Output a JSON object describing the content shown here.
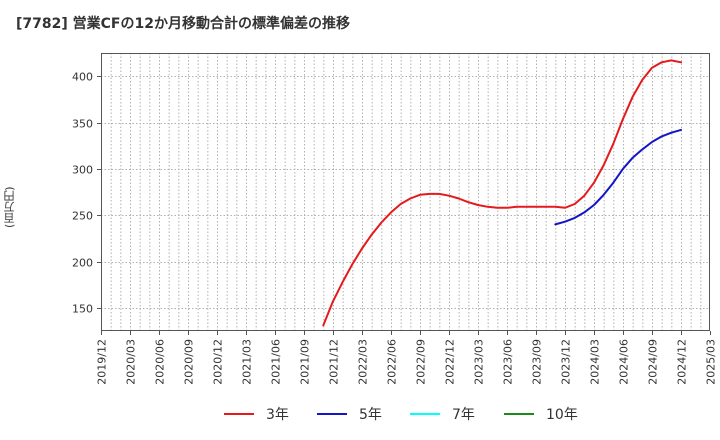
{
  "chart_data": {
    "type": "line",
    "title": "[7782]  営業CFの12か月移動合計の標準偏差の推移",
    "ylabel": "(百万円)",
    "xlabel": "",
    "ylim": [
      125,
      425
    ],
    "yticks": [
      150,
      200,
      250,
      300,
      350,
      400
    ],
    "x_range": [
      "2019/12",
      "2025/03"
    ],
    "x_tick_labels": [
      "2019/12",
      "2020/03",
      "2020/06",
      "2020/09",
      "2020/12",
      "2021/03",
      "2021/06",
      "2021/09",
      "2021/12",
      "2022/03",
      "2022/06",
      "2022/09",
      "2022/12",
      "2023/03",
      "2023/06",
      "2023/09",
      "2023/12",
      "2024/03",
      "2024/06",
      "2024/09",
      "2024/12",
      "2025/03"
    ],
    "grid": true,
    "legend_position": "bottom",
    "series": [
      {
        "name": "3年",
        "color": "#e41a1c",
        "x": [
          "2021/11",
          "2021/12",
          "2022/01",
          "2022/02",
          "2022/03",
          "2022/04",
          "2022/05",
          "2022/06",
          "2022/07",
          "2022/08",
          "2022/09",
          "2022/10",
          "2022/11",
          "2022/12",
          "2023/01",
          "2023/02",
          "2023/03",
          "2023/04",
          "2023/05",
          "2023/06",
          "2023/07",
          "2023/08",
          "2023/09",
          "2023/10",
          "2023/11",
          "2023/12",
          "2024/01",
          "2024/02",
          "2024/03",
          "2024/04",
          "2024/05",
          "2024/06",
          "2024/07",
          "2024/08",
          "2024/09",
          "2024/10",
          "2024/11",
          "2024/12"
        ],
        "values": [
          131,
          157,
          178,
          197,
          214,
          229,
          242,
          253,
          262,
          268,
          272,
          273,
          273,
          271,
          268,
          264,
          261,
          259,
          258,
          258,
          259,
          259,
          259,
          259,
          259,
          258,
          262,
          271,
          285,
          304,
          327,
          354,
          378,
          396,
          409,
          415,
          417,
          415
        ]
      },
      {
        "name": "5年",
        "color": "#1515c8",
        "x": [
          "2023/11",
          "2023/12",
          "2024/01",
          "2024/02",
          "2024/03",
          "2024/04",
          "2024/05",
          "2024/06",
          "2024/07",
          "2024/08",
          "2024/09",
          "2024/10",
          "2024/11",
          "2024/12"
        ],
        "values": [
          240,
          243,
          247,
          253,
          261,
          272,
          285,
          300,
          312,
          321,
          329,
          335,
          339,
          342
        ]
      },
      {
        "name": "7年",
        "color": "#00ffff",
        "x": [],
        "values": []
      },
      {
        "name": "10年",
        "color": "#1a8a1a",
        "x": [],
        "values": []
      }
    ]
  }
}
